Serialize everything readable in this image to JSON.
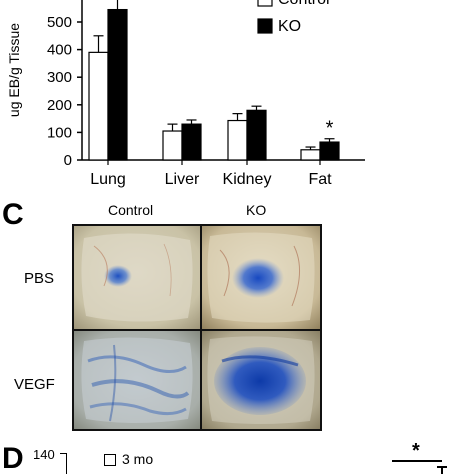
{
  "panel_b": {
    "chart_data": {
      "type": "bar",
      "ylabel": "ug EB/g Tissue",
      "ylim": [
        0,
        600
      ],
      "yticks": [
        0,
        100,
        200,
        300,
        400,
        500
      ],
      "categories": [
        "Lung",
        "Liver",
        "Kidney",
        "Fat"
      ],
      "series": [
        {
          "name": "Control",
          "color": "#ffffff",
          "values": [
            390,
            105,
            143,
            37
          ],
          "errors": [
            60,
            25,
            25,
            10
          ]
        },
        {
          "name": "KO",
          "color": "#000000",
          "values": [
            545,
            130,
            180,
            65
          ],
          "errors": [
            45,
            15,
            15,
            12
          ]
        }
      ],
      "legend": {
        "placement": "top-right"
      },
      "annotations": [
        {
          "text": "*",
          "category": "Fat"
        }
      ]
    }
  },
  "panel_c": {
    "letter": "C",
    "col_headers": [
      "Control",
      "KO"
    ],
    "row_labels": [
      "PBS",
      "VEGF"
    ]
  },
  "panel_d": {
    "letter": "D",
    "ytick_top": "140",
    "legend_label": "3 mo",
    "annotation": "*"
  }
}
